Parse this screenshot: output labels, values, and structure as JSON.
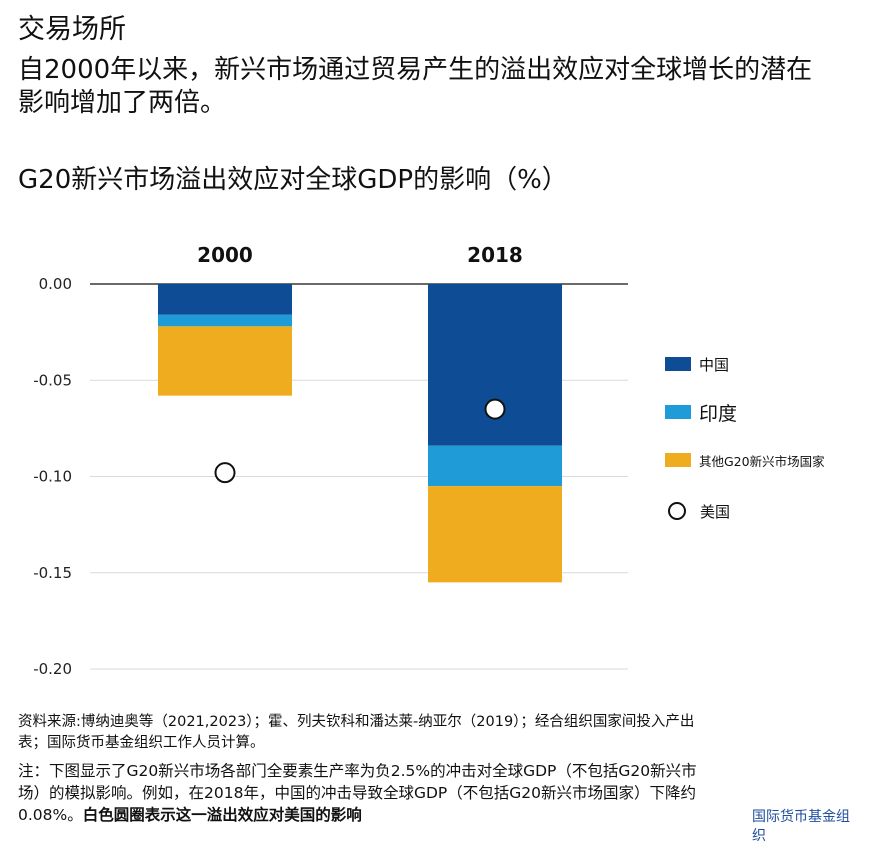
{
  "header": {
    "label": "交易场所",
    "headline": "自2000年以来，新兴市场通过贸易产生的溢出效应对全球增长的潜在影响增加了两倍。"
  },
  "chart_title": "G20新兴市场溢出效应对全球GDP的影响（%）",
  "chart_data": {
    "type": "bar",
    "stacked": true,
    "title": "G20新兴市场溢出效应对全球GDP的影响（%）",
    "categories": [
      "2000",
      "2018"
    ],
    "series": [
      {
        "name": "中国",
        "values": [
          -0.016,
          -0.084
        ],
        "color": "#0e4c96"
      },
      {
        "name": "印度",
        "values": [
          -0.006,
          -0.021
        ],
        "color": "#1f9bd8"
      },
      {
        "name": "其他G20新兴市场国家",
        "values": [
          -0.036,
          -0.05
        ],
        "color": "#f0ac1f"
      }
    ],
    "markers": {
      "name": "美国",
      "values": [
        -0.098,
        -0.065
      ]
    },
    "ylim": [
      -0.2,
      0.0
    ],
    "yticks": [
      "0.00",
      "-0.05",
      "-0.10",
      "-0.15",
      "-0.20"
    ],
    "grid": true,
    "legend_position": "right"
  },
  "legend": {
    "china": "中国",
    "india": "印度",
    "other": "其他G20新兴市场国家",
    "us": "美国"
  },
  "source_text": "资料来源:博纳迪奥等（2021,2023）；霍、列夫钦科和潘达莱-纳亚尔（2019）；经合组织国家间投入产出表；国际货币基金组织工作人员计算。",
  "note": {
    "text": "注：下图显示了G20新兴市场各部门全要素生产率为负2.5%的冲击对全球GDP（不包括G20新兴市场）的模拟影响。例如，在2018年，中国的冲击导致全球GDP（不包括G20新兴市场国家）下降约0.08%。",
    "bold": "白色圆圈表示这一溢出效应对美国的影响"
  },
  "brand": "国际货币基金组织",
  "colors": {
    "china": "#0e4c96",
    "india": "#1f9bd8",
    "other": "#f0ac1f",
    "grid": "#d9d9d9",
    "brand": "#1f4e9c"
  }
}
